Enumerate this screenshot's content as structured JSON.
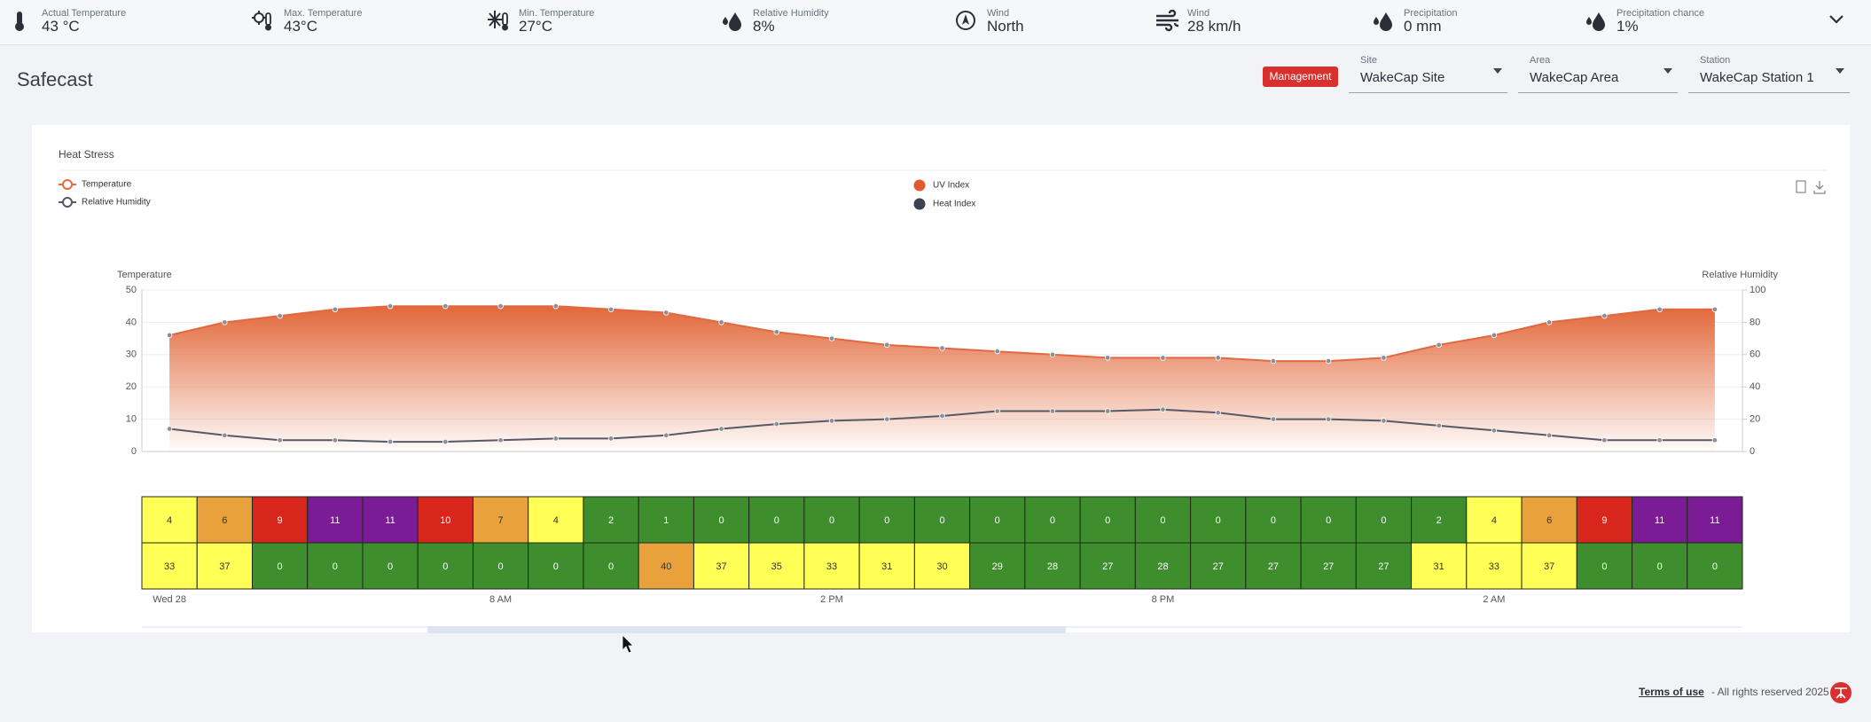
{
  "weather_bar": [
    {
      "label": "Actual Temperature",
      "value": "43 °C"
    },
    {
      "label": "Max. Temperature",
      "value": "43°C"
    },
    {
      "label": "Min. Temperature",
      "value": "27°C"
    },
    {
      "label": "Relative Humidity",
      "value": "8%"
    },
    {
      "label": "Wind",
      "value": "North"
    },
    {
      "label": "Wind",
      "value": "28 km/h"
    },
    {
      "label": "Precipitation",
      "value": "0 mm"
    },
    {
      "label": "Precipitation chance",
      "value": "1%"
    }
  ],
  "header": {
    "title": "Safecast",
    "button": "Management",
    "selects": [
      {
        "label": "Site",
        "value": "WakeCap Site"
      },
      {
        "label": "Area",
        "value": "WakeCap Area"
      },
      {
        "label": "Station",
        "value": "WakeCap Station 1"
      }
    ]
  },
  "chart_data": {
    "type": "line",
    "title": "Heat Stress",
    "y_label": "Temperature",
    "y2_label": "Relative Humidity",
    "categories": [
      "Wed 28",
      null,
      null,
      null,
      null,
      null,
      "8 AM",
      null,
      null,
      null,
      null,
      null,
      "2 PM",
      null,
      null,
      null,
      null,
      null,
      "8 PM",
      null,
      null,
      null,
      null,
      null,
      "2 AM",
      null,
      null,
      null,
      null
    ],
    "ylim": [
      0,
      50
    ],
    "yticks": [
      0,
      10,
      20,
      30,
      40,
      50
    ],
    "y2lim": [
      0,
      100
    ],
    "y2ticks": [
      0,
      20,
      40,
      60,
      80,
      100
    ],
    "grid": true,
    "series": [
      {
        "name": "Temperature",
        "color": "#e2683f",
        "area": true,
        "values": [
          36,
          40,
          42,
          44,
          45,
          45,
          45,
          45,
          44,
          43,
          40,
          37,
          35,
          33,
          32,
          31,
          30,
          29,
          29,
          29,
          28,
          28,
          29,
          33,
          36,
          40,
          42,
          44,
          44
        ]
      },
      {
        "name": "Relative Humidity",
        "color": "#555a66",
        "axis": "y2",
        "values": [
          14,
          10,
          7,
          7,
          6,
          6,
          7,
          8,
          8,
          10,
          14,
          17,
          19,
          20,
          22,
          25,
          25,
          25,
          26,
          24,
          20,
          20,
          19,
          16,
          13,
          10,
          7,
          7,
          7
        ]
      }
    ],
    "cell_rows": [
      {
        "name": "UV Index",
        "color": "#df5a2c",
        "values": [
          4,
          6,
          9,
          11,
          11,
          10,
          7,
          4,
          2,
          1,
          0,
          0,
          0,
          0,
          0,
          0,
          0,
          0,
          0,
          0,
          0,
          0,
          0,
          2,
          4,
          6,
          9,
          11,
          11
        ],
        "cell_colors": [
          "#ffff55",
          "#e9a23b",
          "#d9261c",
          "#7b1b96",
          "#7b1b96",
          "#d9261c",
          "#e9a23b",
          "#ffff55",
          "#3e8e2e",
          "#3e8e2e",
          "#3e8e2e",
          "#3e8e2e",
          "#3e8e2e",
          "#3e8e2e",
          "#3e8e2e",
          "#3e8e2e",
          "#3e8e2e",
          "#3e8e2e",
          "#3e8e2e",
          "#3e8e2e",
          "#3e8e2e",
          "#3e8e2e",
          "#3e8e2e",
          "#3e8e2e",
          "#ffff55",
          "#e9a23b",
          "#d9261c",
          "#7b1b96",
          "#7b1b96"
        ]
      },
      {
        "name": "Heat Index",
        "color": "#3d4250",
        "values": [
          33,
          37,
          0,
          0,
          0,
          0,
          0,
          0,
          0,
          40,
          37,
          35,
          33,
          31,
          30,
          29,
          28,
          27,
          28,
          27,
          27,
          27,
          27,
          31,
          33,
          37,
          0,
          0,
          0
        ],
        "cell_colors": [
          "#ffff55",
          "#ffff55",
          "#3e8e2e",
          "#3e8e2e",
          "#3e8e2e",
          "#3e8e2e",
          "#3e8e2e",
          "#3e8e2e",
          "#3e8e2e",
          "#e9a23b",
          "#ffff55",
          "#ffff55",
          "#ffff55",
          "#ffff55",
          "#ffff55",
          "#3e8e2e",
          "#3e8e2e",
          "#3e8e2e",
          "#3e8e2e",
          "#3e8e2e",
          "#3e8e2e",
          "#3e8e2e",
          "#3e8e2e",
          "#ffff55",
          "#ffff55",
          "#ffff55",
          "#3e8e2e",
          "#3e8e2e",
          "#3e8e2e"
        ]
      }
    ]
  },
  "footer": {
    "link": "Terms of use",
    "text": "- All rights reserved 2025"
  }
}
